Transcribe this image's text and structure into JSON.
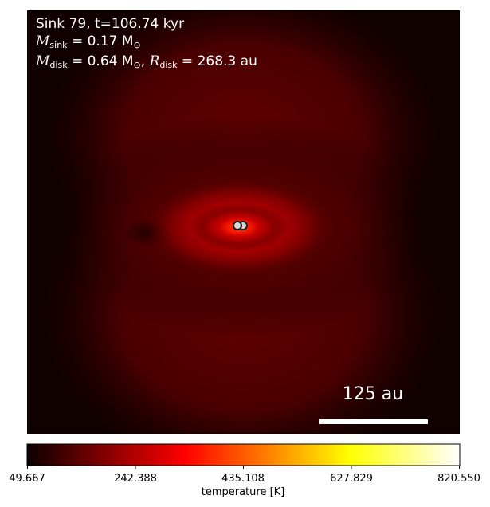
{
  "figure": {
    "sink_line": "Sink 79, t=106.74 kyr",
    "msink_symbol": "M",
    "msink_sub": "sink",
    "msink_value": " = 0.17 M",
    "msink_sun": "⊙",
    "mdisk_symbol": "M",
    "mdisk_sub": "disk",
    "mdisk_value": " = 0.64 M",
    "mdisk_sun": "⊙",
    "mdisk_sep": ", ",
    "rdisk_symbol": "R",
    "rdisk_sub": "disk",
    "rdisk_value": " = 268.3 au",
    "scale_bar_label": "125 au"
  },
  "colorbar": {
    "colormap": "hot",
    "label": "temperature [K]",
    "min": 49.667,
    "max": 820.55,
    "ticks": [
      "49.667",
      "242.388",
      "435.108",
      "627.829",
      "820.550"
    ]
  },
  "colors": {
    "background_dark": "#0d0000",
    "field_red": "#5a0000",
    "hot_core": "#ff2a00",
    "sink_marker_fill": "#d8d8d8",
    "sink_marker_edge": "#1e1e1e"
  }
}
